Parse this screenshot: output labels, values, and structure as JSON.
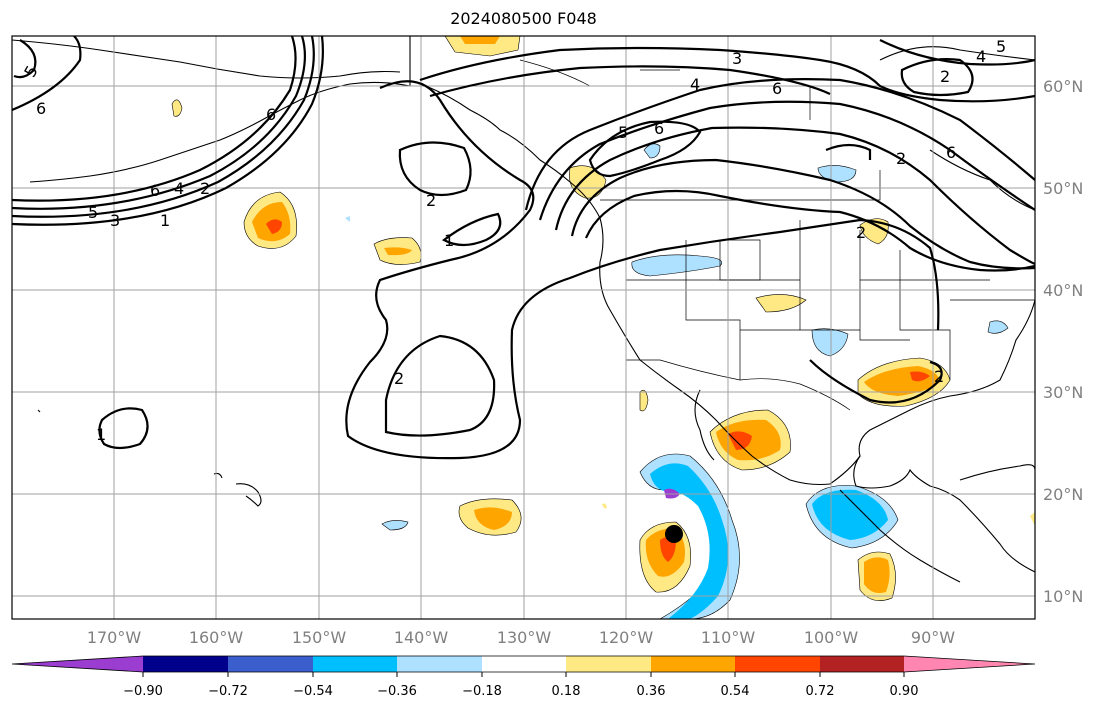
{
  "title": "2024080500 F048",
  "map": {
    "lon_labels": [
      "170°W",
      "160°W",
      "150°W",
      "140°W",
      "130°W",
      "120°W",
      "110°W",
      "100°W",
      "90°W"
    ],
    "lat_labels": [
      "60°N",
      "50°N",
      "40°N",
      "30°N",
      "20°N",
      "10°N"
    ],
    "contour_labels": [
      "5",
      "6",
      "6",
      "4",
      "2",
      "5",
      "3",
      "1",
      "2",
      "1",
      "2",
      "2",
      "1",
      "3",
      "4",
      "6",
      "6",
      "5",
      "6",
      "2",
      "6",
      "2",
      "2",
      "5",
      "4"
    ],
    "marker": "storm-center-dot"
  },
  "colorbar": {
    "tick_labels": [
      "−0.90",
      "−0.72",
      "−0.54",
      "−0.36",
      "−0.18",
      "0.18",
      "0.36",
      "0.54",
      "0.72",
      "0.90"
    ],
    "colors": [
      "#9a3dd0",
      "#00008b",
      "#3a5fcd",
      "#00bfff",
      "#aee0ff",
      "#ffffff",
      "#ffe985",
      "#ffa500",
      "#ff4500",
      "#b22222",
      "#ff86b0"
    ]
  }
}
